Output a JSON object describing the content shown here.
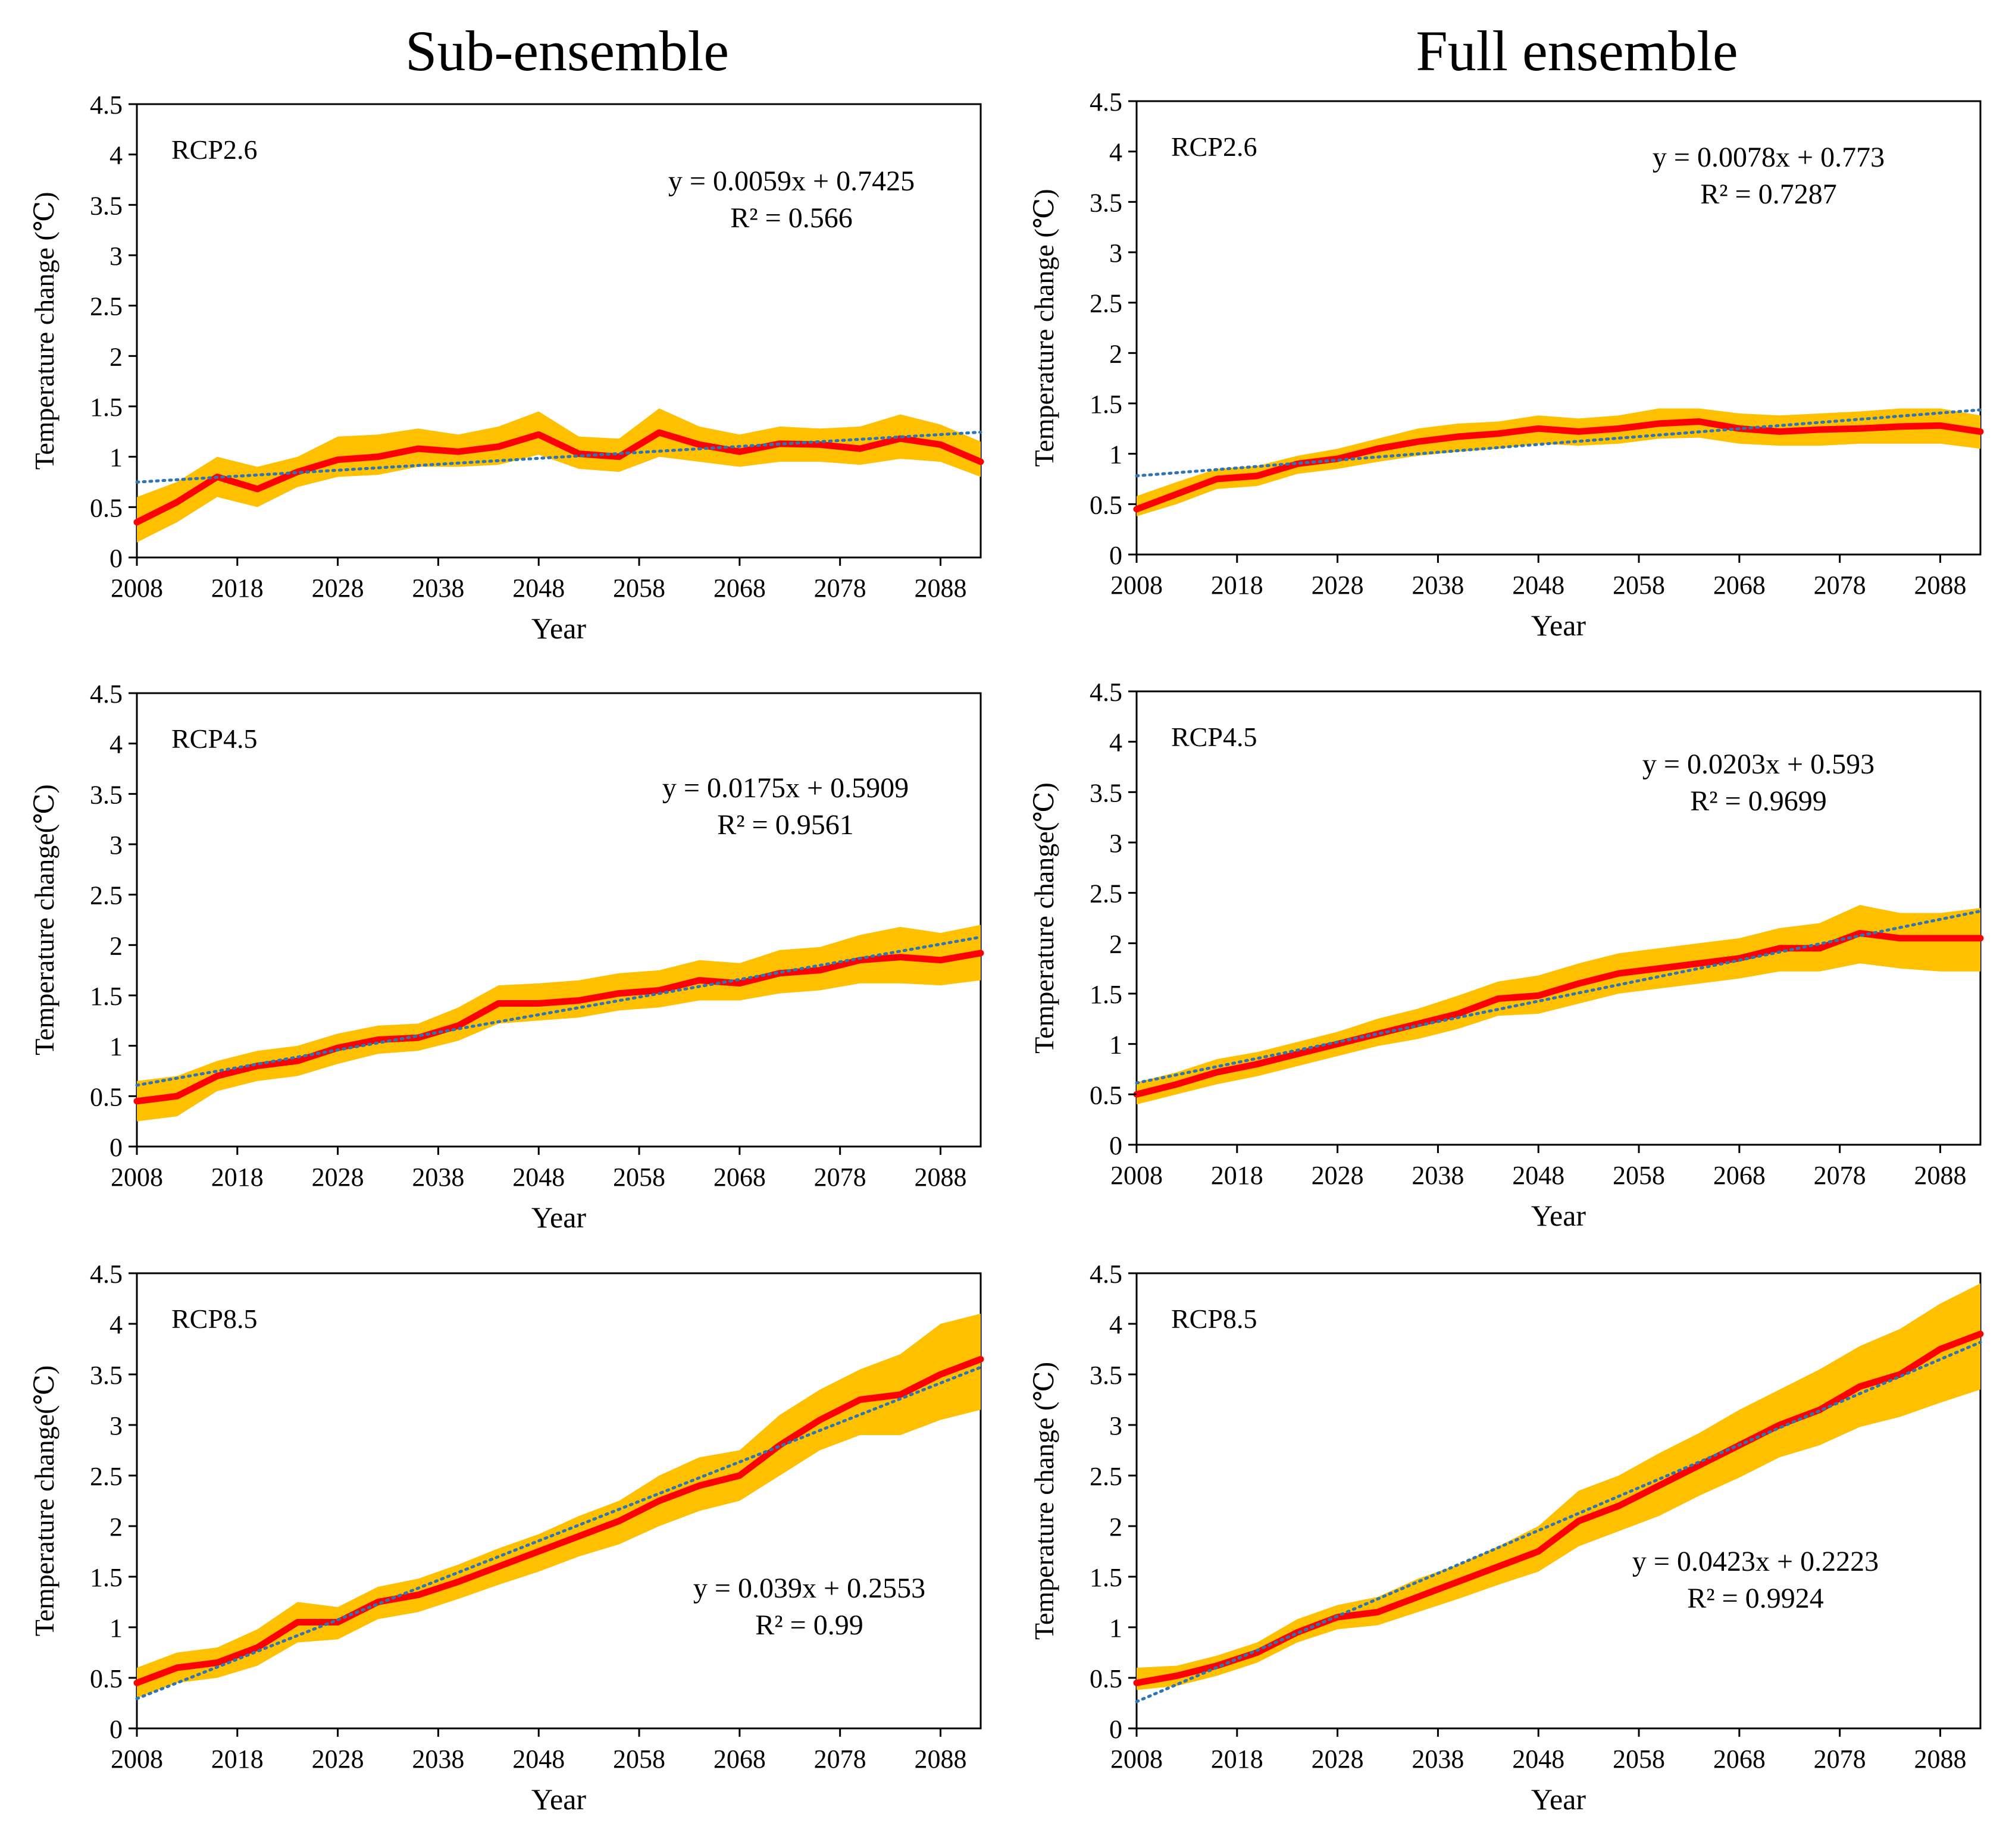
{
  "columns": [
    "Sub-ensemble",
    "Full ensemble"
  ],
  "common": {
    "xlabel": "Year",
    "x_ticks": [
      "2008",
      "2018",
      "2028",
      "2038",
      "2048",
      "2058",
      "2068",
      "2078",
      "2088"
    ],
    "y_ticks": [
      "0",
      "0.5",
      "1",
      "1.5",
      "2",
      "2.5",
      "3",
      "3.5",
      "4",
      "4.5"
    ]
  },
  "colors": {
    "band": "#FFC000",
    "mean": "#FF0000",
    "trend": "#2E75B6"
  },
  "chart_data": [
    {
      "type": "line",
      "ensemble": "Sub-ensemble",
      "scenario": "RCP2.6",
      "ylabel": "Temperature change (℃)",
      "xlabel": "Year",
      "xlim": [
        2008,
        2092
      ],
      "ylim": [
        0,
        4.5
      ],
      "equation": "y = 0.0059x + 0.7425",
      "r2": "R² = 0.566",
      "trend": {
        "slope": 0.0059,
        "intercept": 0.7425
      },
      "x": [
        2008,
        2012,
        2016,
        2020,
        2024,
        2028,
        2032,
        2036,
        2040,
        2044,
        2048,
        2052,
        2056,
        2060,
        2064,
        2068,
        2072,
        2076,
        2080,
        2084,
        2088,
        2092
      ],
      "mean": [
        0.35,
        0.55,
        0.8,
        0.68,
        0.85,
        0.97,
        1.0,
        1.08,
        1.05,
        1.1,
        1.22,
        1.03,
        1.0,
        1.24,
        1.12,
        1.05,
        1.13,
        1.12,
        1.08,
        1.18,
        1.12,
        0.95
      ],
      "upper": [
        0.6,
        0.75,
        1.0,
        0.9,
        1.0,
        1.2,
        1.22,
        1.28,
        1.22,
        1.3,
        1.45,
        1.2,
        1.18,
        1.48,
        1.3,
        1.22,
        1.3,
        1.28,
        1.3,
        1.42,
        1.32,
        1.15
      ],
      "lower": [
        0.15,
        0.35,
        0.6,
        0.5,
        0.7,
        0.8,
        0.82,
        0.9,
        0.9,
        0.92,
        1.02,
        0.88,
        0.85,
        1.0,
        0.95,
        0.9,
        0.95,
        0.95,
        0.92,
        0.98,
        0.95,
        0.8
      ]
    },
    {
      "type": "line",
      "ensemble": "Full ensemble",
      "scenario": "RCP2.6",
      "ylabel": "Temperature change (℃)",
      "xlabel": "Year",
      "xlim": [
        2008,
        2092
      ],
      "ylim": [
        0,
        4.5
      ],
      "equation": "y = 0.0078x + 0.773",
      "r2": "R² = 0.7287",
      "trend": {
        "slope": 0.0078,
        "intercept": 0.773
      },
      "x": [
        2008,
        2012,
        2016,
        2020,
        2024,
        2028,
        2032,
        2036,
        2040,
        2044,
        2048,
        2052,
        2056,
        2060,
        2064,
        2068,
        2072,
        2076,
        2080,
        2084,
        2088,
        2092
      ],
      "mean": [
        0.45,
        0.6,
        0.75,
        0.78,
        0.9,
        0.95,
        1.05,
        1.12,
        1.17,
        1.2,
        1.25,
        1.22,
        1.25,
        1.3,
        1.32,
        1.25,
        1.22,
        1.24,
        1.25,
        1.27,
        1.28,
        1.22
      ],
      "upper": [
        0.58,
        0.72,
        0.85,
        0.88,
        0.98,
        1.05,
        1.15,
        1.25,
        1.3,
        1.32,
        1.38,
        1.35,
        1.38,
        1.45,
        1.45,
        1.4,
        1.38,
        1.4,
        1.42,
        1.45,
        1.45,
        1.38
      ],
      "lower": [
        0.38,
        0.5,
        0.65,
        0.68,
        0.8,
        0.85,
        0.92,
        0.98,
        1.02,
        1.05,
        1.1,
        1.08,
        1.1,
        1.15,
        1.16,
        1.1,
        1.08,
        1.08,
        1.1,
        1.1,
        1.1,
        1.05
      ]
    },
    {
      "type": "line",
      "ensemble": "Sub-ensemble",
      "scenario": "RCP4.5",
      "ylabel": "Temperature change(℃)",
      "xlabel": "Year",
      "xlim": [
        2008,
        2092
      ],
      "ylim": [
        0,
        4.5
      ],
      "equation": "y = 0.0175x + 0.5909",
      "r2": "R² = 0.9561",
      "trend": {
        "slope": 0.0175,
        "intercept": 0.5909
      },
      "x": [
        2008,
        2012,
        2016,
        2020,
        2024,
        2028,
        2032,
        2036,
        2040,
        2044,
        2048,
        2052,
        2056,
        2060,
        2064,
        2068,
        2072,
        2076,
        2080,
        2084,
        2088,
        2092
      ],
      "mean": [
        0.45,
        0.5,
        0.7,
        0.8,
        0.85,
        0.98,
        1.06,
        1.08,
        1.2,
        1.42,
        1.42,
        1.45,
        1.52,
        1.55,
        1.65,
        1.62,
        1.72,
        1.75,
        1.85,
        1.88,
        1.85,
        1.92
      ],
      "upper": [
        0.65,
        0.7,
        0.85,
        0.95,
        1.0,
        1.12,
        1.2,
        1.22,
        1.38,
        1.6,
        1.62,
        1.65,
        1.72,
        1.75,
        1.85,
        1.82,
        1.95,
        1.98,
        2.1,
        2.18,
        2.12,
        2.2
      ],
      "lower": [
        0.25,
        0.3,
        0.55,
        0.65,
        0.7,
        0.82,
        0.92,
        0.95,
        1.05,
        1.22,
        1.25,
        1.28,
        1.35,
        1.38,
        1.45,
        1.45,
        1.52,
        1.55,
        1.62,
        1.62,
        1.6,
        1.65
      ]
    },
    {
      "type": "line",
      "ensemble": "Full ensemble",
      "scenario": "RCP4.5",
      "ylabel": "Temperature change(℃)",
      "xlabel": "Year",
      "xlim": [
        2008,
        2092
      ],
      "ylim": [
        0,
        4.5
      ],
      "equation": "y = 0.0203x + 0.593",
      "r2": "R² = 0.9699",
      "trend": {
        "slope": 0.0203,
        "intercept": 0.593
      },
      "x": [
        2008,
        2012,
        2016,
        2020,
        2024,
        2028,
        2032,
        2036,
        2040,
        2044,
        2048,
        2052,
        2056,
        2060,
        2064,
        2068,
        2072,
        2076,
        2080,
        2084,
        2088,
        2092
      ],
      "mean": [
        0.5,
        0.6,
        0.72,
        0.8,
        0.9,
        1.0,
        1.1,
        1.2,
        1.3,
        1.45,
        1.48,
        1.6,
        1.7,
        1.75,
        1.8,
        1.85,
        1.95,
        1.95,
        2.1,
        2.05,
        2.05,
        2.05
      ],
      "upper": [
        0.62,
        0.72,
        0.85,
        0.92,
        1.02,
        1.12,
        1.25,
        1.35,
        1.48,
        1.62,
        1.68,
        1.8,
        1.9,
        1.95,
        2.0,
        2.05,
        2.15,
        2.2,
        2.38,
        2.3,
        2.3,
        2.35
      ],
      "lower": [
        0.4,
        0.5,
        0.6,
        0.68,
        0.78,
        0.88,
        0.98,
        1.05,
        1.15,
        1.28,
        1.3,
        1.4,
        1.5,
        1.55,
        1.6,
        1.65,
        1.72,
        1.72,
        1.8,
        1.75,
        1.72,
        1.72
      ]
    },
    {
      "type": "line",
      "ensemble": "Sub-ensemble",
      "scenario": "RCP8.5",
      "ylabel": "Temperature change(℃)",
      "xlabel": "Year",
      "xlim": [
        2008,
        2092
      ],
      "ylim": [
        0,
        4.5
      ],
      "equation": "y = 0.039x + 0.2553",
      "r2": "R² = 0.99",
      "trend": {
        "slope": 0.039,
        "intercept": 0.2553
      },
      "x": [
        2008,
        2012,
        2016,
        2020,
        2024,
        2028,
        2032,
        2036,
        2040,
        2044,
        2048,
        2052,
        2056,
        2060,
        2064,
        2068,
        2072,
        2076,
        2080,
        2084,
        2088,
        2092
      ],
      "mean": [
        0.45,
        0.6,
        0.65,
        0.8,
        1.05,
        1.05,
        1.25,
        1.32,
        1.45,
        1.6,
        1.75,
        1.9,
        2.05,
        2.25,
        2.4,
        2.5,
        2.8,
        3.05,
        3.25,
        3.3,
        3.5,
        3.65
      ],
      "upper": [
        0.6,
        0.75,
        0.8,
        0.98,
        1.25,
        1.2,
        1.4,
        1.48,
        1.62,
        1.78,
        1.92,
        2.1,
        2.25,
        2.5,
        2.68,
        2.75,
        3.1,
        3.35,
        3.55,
        3.7,
        4.0,
        4.1
      ],
      "lower": [
        0.3,
        0.45,
        0.5,
        0.62,
        0.85,
        0.88,
        1.08,
        1.15,
        1.28,
        1.42,
        1.55,
        1.7,
        1.82,
        2.0,
        2.15,
        2.25,
        2.5,
        2.75,
        2.9,
        2.9,
        3.05,
        3.15
      ]
    },
    {
      "type": "line",
      "ensemble": "Full ensemble",
      "scenario": "RCP8.5",
      "ylabel": "Temperature change (℃)",
      "xlabel": "Year",
      "xlim": [
        2008,
        2092
      ],
      "ylim": [
        0,
        4.5
      ],
      "equation": "y = 0.0423x + 0.2223",
      "r2": "R² = 0.9924",
      "trend": {
        "slope": 0.0423,
        "intercept": 0.2223
      },
      "x": [
        2008,
        2012,
        2016,
        2020,
        2024,
        2028,
        2032,
        2036,
        2040,
        2044,
        2048,
        2052,
        2056,
        2060,
        2064,
        2068,
        2072,
        2076,
        2080,
        2084,
        2088,
        2092
      ],
      "mean": [
        0.45,
        0.52,
        0.62,
        0.75,
        0.95,
        1.1,
        1.15,
        1.3,
        1.45,
        1.6,
        1.75,
        2.05,
        2.2,
        2.4,
        2.6,
        2.8,
        3.0,
        3.15,
        3.38,
        3.5,
        3.75,
        3.9
      ],
      "upper": [
        0.6,
        0.62,
        0.72,
        0.85,
        1.08,
        1.22,
        1.3,
        1.48,
        1.62,
        1.8,
        2.0,
        2.35,
        2.5,
        2.72,
        2.92,
        3.15,
        3.35,
        3.55,
        3.78,
        3.95,
        4.2,
        4.4
      ],
      "lower": [
        0.38,
        0.42,
        0.52,
        0.65,
        0.85,
        0.98,
        1.02,
        1.15,
        1.28,
        1.42,
        1.55,
        1.8,
        1.95,
        2.1,
        2.3,
        2.48,
        2.68,
        2.8,
        2.98,
        3.08,
        3.22,
        3.35
      ]
    }
  ]
}
